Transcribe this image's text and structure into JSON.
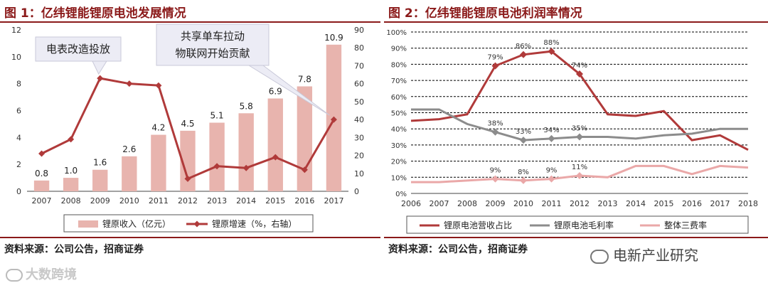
{
  "chart_data": [
    {
      "type": "bar",
      "title": "图 1：亿纬锂能锂原电池发展情况",
      "categories": [
        "2007",
        "2008",
        "2009",
        "2010",
        "2011",
        "2012",
        "2013",
        "2014",
        "2015",
        "2016",
        "2017"
      ],
      "series": [
        {
          "name": "锂原收入（亿元）",
          "type": "bar",
          "axis": "left",
          "color": "#e8b4ae",
          "values": [
            0.8,
            1.0,
            1.6,
            2.6,
            4.2,
            4.5,
            5.1,
            5.8,
            6.9,
            7.8,
            10.9
          ],
          "labels": [
            "0.8",
            "1.0",
            "1.6",
            "2.6",
            "4.2",
            "4.5",
            "5.1",
            "5.8",
            "6.9",
            "7.8",
            "10.9"
          ]
        },
        {
          "name": "锂原增速（%，右轴）",
          "type": "line",
          "axis": "right",
          "color": "#b03a3a",
          "values": [
            21,
            29,
            63,
            60,
            59,
            7,
            14,
            13,
            19,
            12,
            40
          ]
        }
      ],
      "ylim_left": [
        0,
        12
      ],
      "yticks_left": [
        0,
        2,
        4,
        6,
        8,
        10,
        12
      ],
      "ylim_right": [
        0,
        90
      ],
      "yticks_right": [
        0,
        10,
        20,
        30,
        40,
        50,
        60,
        70,
        80,
        90
      ],
      "legend": "bottom",
      "annotations": [
        {
          "text": "电表改造投放"
        },
        {
          "text_lines": [
            "共享单车拉动",
            "物联网开始贡献"
          ]
        }
      ]
    },
    {
      "type": "line",
      "title": "图 2：亿纬锂能锂原电池利润率情况",
      "categories": [
        "2006",
        "2007",
        "2008",
        "2009",
        "2010",
        "2011",
        "2012",
        "2013",
        "2014",
        "2015",
        "2016",
        "2017",
        "2018"
      ],
      "series": [
        {
          "name": "锂原电池营收占比",
          "color": "#b03a3a",
          "marker": "diamond",
          "values": [
            45,
            46,
            49,
            79,
            86,
            88,
            74,
            49,
            48,
            51,
            33,
            36,
            27
          ],
          "labels": {
            "3": "79%",
            "4": "86%",
            "5": "88%",
            "6": "74%"
          }
        },
        {
          "name": "锂原电池毛利率",
          "color": "#8c8c8c",
          "marker": "diamond",
          "values": [
            52,
            52,
            43,
            38,
            33,
            34,
            35,
            35,
            34,
            36,
            37,
            40,
            40
          ],
          "labels": {
            "3": "38%",
            "4": "33%",
            "5": "34%",
            "6": "35%"
          }
        },
        {
          "name": "整体三费率",
          "color": "#eaa8a8",
          "marker": "diamond",
          "values": [
            7,
            7,
            8,
            9,
            8,
            9,
            11,
            10,
            17,
            17,
            12,
            17,
            16
          ],
          "labels": {
            "3": "9%",
            "4": "8%",
            "5": "9%",
            "6": "11%"
          }
        }
      ],
      "ylim": [
        0,
        100
      ],
      "yticks": [
        "0%",
        "10%",
        "20%",
        "30%",
        "40%",
        "50%",
        "60%",
        "70%",
        "80%",
        "90%",
        "100%"
      ],
      "grid": "horizontal",
      "legend": "bottom"
    }
  ],
  "source_left": "资料来源：公司公告，招商证券",
  "source_right": "资料来源：公司公告，招商证券",
  "watermark_left": "大数跨境",
  "watermark_right": "电新产业研究"
}
